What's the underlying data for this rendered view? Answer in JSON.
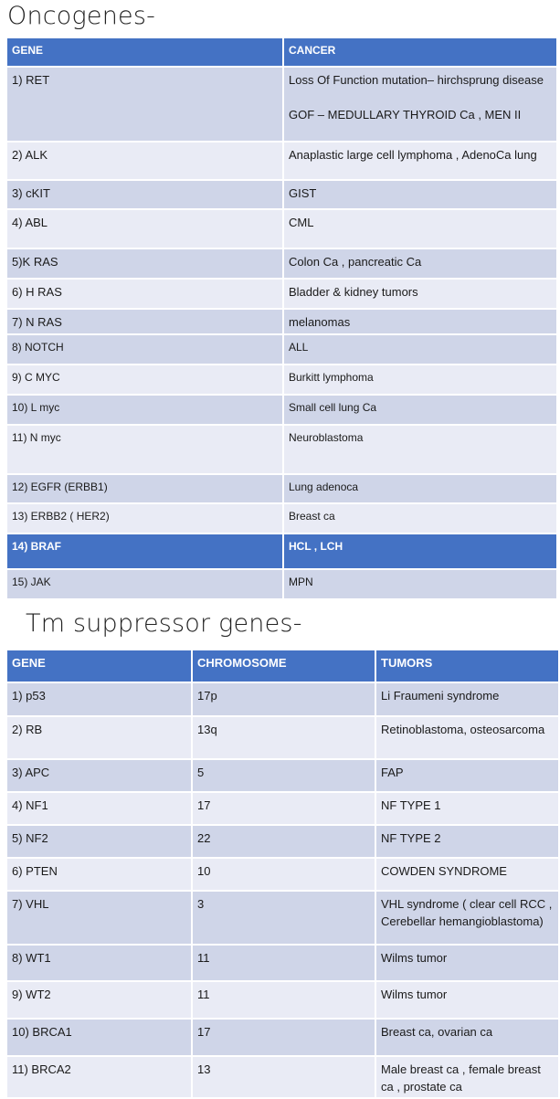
{
  "oncogenes": {
    "title": "Oncogenes-",
    "headers": [
      "GENE",
      "CANCER"
    ],
    "rows": [
      {
        "gene": "1) RET",
        "cancer": "Loss Of Function mutation– hirchsprung disease\n\nGOF – MEDULLARY THYROID Ca , MEN II"
      },
      {
        "gene": "2) ALK",
        "cancer": "Anaplastic large cell lymphoma , AdenoCa lung"
      },
      {
        "gene": "3) cKIT",
        "cancer": "GIST"
      },
      {
        "gene": "4) ABL",
        "cancer": "CML"
      },
      {
        "gene": "5)K RAS",
        "cancer": "Colon Ca , pancreatic Ca"
      },
      {
        "gene": "6) H RAS",
        "cancer": "Bladder & kidney tumors"
      },
      {
        "gene": "7) N RAS",
        "cancer": "melanomas"
      },
      {
        "gene": "8) NOTCH",
        "cancer": "ALL"
      },
      {
        "gene": "9) C MYC",
        "cancer": "Burkitt lymphoma"
      },
      {
        "gene": "10) L myc",
        "cancer": "Small cell lung Ca"
      },
      {
        "gene": "11) N myc",
        "cancer": "Neuroblastoma"
      },
      {
        "gene": "12) EGFR (ERBB1)",
        "cancer": "Lung adenoca"
      },
      {
        "gene": "13) ERBB2 ( HER2)",
        "cancer": "Breast ca"
      },
      {
        "gene": "14) BRAF",
        "cancer": "HCL , LCH"
      },
      {
        "gene": "15) JAK",
        "cancer": "MPN"
      }
    ]
  },
  "tumor_suppressors": {
    "title": "Tm suppressor genes-",
    "headers": [
      "GENE",
      "CHROMOSOME",
      "TUMORS"
    ],
    "rows": [
      {
        "gene": "1) p53",
        "chromosome": "17p",
        "tumors": "Li Fraumeni syndrome"
      },
      {
        "gene": "2) RB",
        "chromosome": "13q",
        "tumors": "Retinoblastoma, osteosarcoma"
      },
      {
        "gene": "3) APC",
        "chromosome": "5",
        "tumors": "FAP"
      },
      {
        "gene": "4) NF1",
        "chromosome": "17",
        "tumors": "NF TYPE 1"
      },
      {
        "gene": "5) NF2",
        "chromosome": "22",
        "tumors": "NF TYPE 2"
      },
      {
        "gene": "6) PTEN",
        "chromosome": "10",
        "tumors": "COWDEN SYNDROME"
      },
      {
        "gene": "7) VHL",
        "chromosome": "3",
        "tumors": "VHL syndrome ( clear cell RCC , Cerebellar hemangioblastoma)"
      },
      {
        "gene": "8) WT1",
        "chromosome": "11",
        "tumors": "Wilms tumor"
      },
      {
        "gene": "9) WT2",
        "chromosome": "11",
        "tumors": "Wilms tumor"
      },
      {
        "gene": "10) BRCA1",
        "chromosome": "17",
        "tumors": "Breast ca, ovarian ca"
      },
      {
        "gene": "11) BRCA2",
        "chromosome": "13",
        "tumors": "Male breast ca , female breast ca , prostate ca"
      }
    ]
  }
}
